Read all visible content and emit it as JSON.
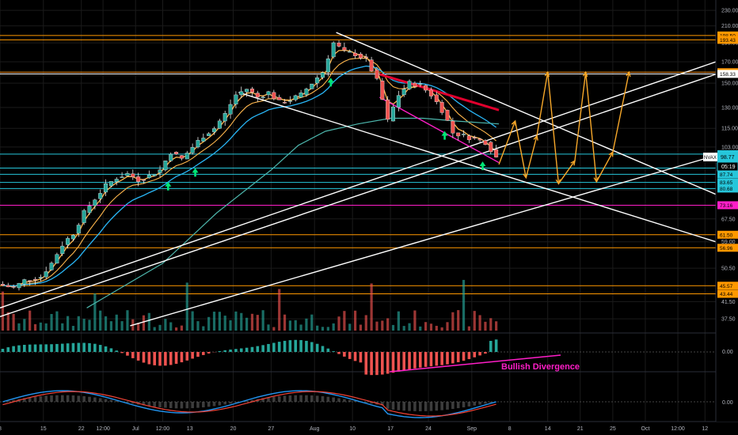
{
  "symbol": "NVAX",
  "current_price": "98.77",
  "countdown": "05:19",
  "annotation": "Bullish Divergence",
  "colors": {
    "background": "#000000",
    "grid": "#1b1b1b",
    "axis_text": "#b2b5be",
    "up": "#26a69a",
    "down": "#ef5350",
    "candle_line": "#e6e6e6",
    "orange": "#ff9800",
    "aqua": "#26c6da",
    "magenta": "#ff1ec8",
    "white_line": "#ffffff",
    "ema_fast": "#ffb74d",
    "ema_slow": "#29b6f6",
    "ma_long": "#4db6ac",
    "ma_red": "#e0002d",
    "arrow_green": "#00e676",
    "projection": "#f7a82a",
    "macd_blue": "#2196f3",
    "macd_red": "#f44336"
  },
  "chart_data": {
    "type": "candlestick",
    "y_axis_scale": "log",
    "ylim": [
      35,
      240
    ],
    "y_ticks": [
      "230.00",
      "210.00",
      "190.00",
      "170.00",
      "150.00",
      "130.00",
      "115.00",
      "103.00",
      "91.00",
      "80.00",
      "67.50",
      "59.00",
      "50.50",
      "41.50",
      "37.50"
    ],
    "x_tick_labels": [
      "8",
      "15",
      "22",
      "12:00",
      "Jul",
      "12:00",
      "13",
      "20",
      "27",
      "Aug",
      "10",
      "17",
      "24",
      "Sep",
      "8",
      "14",
      "21",
      "25",
      "Oct",
      "12:00",
      "12"
    ],
    "price_levels": [
      {
        "value": 198.5,
        "label": "198.50",
        "color": "#ff9800"
      },
      {
        "value": 193.43,
        "label": "193.43",
        "color": "#ff9800"
      },
      {
        "value": 159.95,
        "label": "159.95",
        "color": "#ff9800"
      },
      {
        "value": 158.33,
        "label": "158.33",
        "color": "#ffffff"
      },
      {
        "value": 98.77,
        "label": "98.77",
        "color": "#26c6da"
      },
      {
        "value": 91.04,
        "label": "91.04",
        "color": "#26c6da"
      },
      {
        "value": 87.74,
        "label": "87.74",
        "color": "#26c6da"
      },
      {
        "value": 83.65,
        "label": "83.65",
        "color": "#26c6da"
      },
      {
        "value": 80.68,
        "label": "80.68",
        "color": "#26c6da"
      },
      {
        "value": 73.16,
        "label": "73.16",
        "color": "#ff1ec8"
      },
      {
        "value": 61.5,
        "label": "61.50",
        "color": "#ff9800"
      },
      {
        "value": 56.96,
        "label": "56.96",
        "color": "#ff9800"
      },
      {
        "value": 45.57,
        "label": "45.57",
        "color": "#ff9800"
      },
      {
        "value": 43.44,
        "label": "43.44",
        "color": "#ff9800"
      }
    ],
    "price_path": [
      [
        0,
        46
      ],
      [
        3,
        45
      ],
      [
        5,
        47
      ],
      [
        8,
        48
      ],
      [
        10,
        52
      ],
      [
        12,
        58
      ],
      [
        14,
        62
      ],
      [
        16,
        70
      ],
      [
        18,
        76
      ],
      [
        20,
        82
      ],
      [
        22,
        86
      ],
      [
        24,
        88
      ],
      [
        26,
        85
      ],
      [
        28,
        87
      ],
      [
        30,
        90
      ],
      [
        32,
        100
      ],
      [
        34,
        96
      ],
      [
        36,
        103
      ],
      [
        38,
        110
      ],
      [
        40,
        115
      ],
      [
        42,
        125
      ],
      [
        44,
        140
      ],
      [
        46,
        145
      ],
      [
        48,
        138
      ],
      [
        50,
        142
      ],
      [
        52,
        134
      ],
      [
        54,
        136
      ],
      [
        56,
        140
      ],
      [
        58,
        150
      ],
      [
        60,
        160
      ],
      [
        62,
        190
      ],
      [
        64,
        180
      ],
      [
        66,
        178
      ],
      [
        68,
        172
      ],
      [
        70,
        152
      ],
      [
        72,
        120
      ],
      [
        74,
        140
      ],
      [
        76,
        150
      ],
      [
        78,
        148
      ],
      [
        80,
        140
      ],
      [
        82,
        128
      ],
      [
        84,
        112
      ],
      [
        86,
        110
      ],
      [
        88,
        108
      ],
      [
        90,
        106
      ],
      [
        92,
        97
      ]
    ],
    "long_ma_path": [
      [
        16,
        40
      ],
      [
        30,
        52
      ],
      [
        40,
        70
      ],
      [
        50,
        90
      ],
      [
        55,
        104
      ],
      [
        60,
        113
      ],
      [
        66,
        118
      ],
      [
        72,
        122
      ],
      [
        78,
        122
      ],
      [
        84,
        120
      ],
      [
        92,
        118
      ]
    ],
    "projection_path": [
      [
        92,
        93
      ],
      [
        95,
        120
      ],
      [
        97,
        86
      ],
      [
        99,
        110
      ],
      [
        101,
        160
      ],
      [
        103,
        83
      ],
      [
        106,
        95
      ],
      [
        108,
        160
      ],
      [
        110,
        84
      ],
      [
        113,
        100
      ],
      [
        116,
        160
      ]
    ],
    "trendlines": [
      {
        "points": [
          [
            62,
            202
          ],
          [
            132,
            78
          ]
        ],
        "color": "#ffffff"
      },
      {
        "points": [
          [
            44,
            142
          ],
          [
            132,
            59
          ]
        ],
        "color": "#ffffff"
      },
      {
        "points": [
          [
            0,
            40
          ],
          [
            132,
            170
          ]
        ],
        "color": "#ffffff"
      },
      {
        "points": [
          [
            0,
            38
          ],
          [
            132,
            158
          ]
        ],
        "color": "#ffffff"
      },
      {
        "points": [
          [
            24,
            36
          ],
          [
            132,
            98
          ]
        ],
        "color": "#ffffff"
      },
      {
        "points": [
          [
            70,
            138
          ],
          [
            92,
            94
          ]
        ],
        "color": "#ff1ec8"
      },
      {
        "points": [
          [
            70,
            158
          ],
          [
            92,
            128
          ]
        ],
        "color": "#e0002d"
      }
    ],
    "green_arrows_at_x": [
      31,
      36,
      61,
      82,
      89
    ],
    "bar_count": 92,
    "x_range": [
      0,
      132
    ],
    "x_tick_positions": [
      0,
      8,
      15,
      19,
      25,
      30,
      35,
      43,
      50,
      58,
      65,
      72,
      79,
      87,
      94,
      101,
      107,
      113,
      119,
      125,
      130
    ]
  }
}
